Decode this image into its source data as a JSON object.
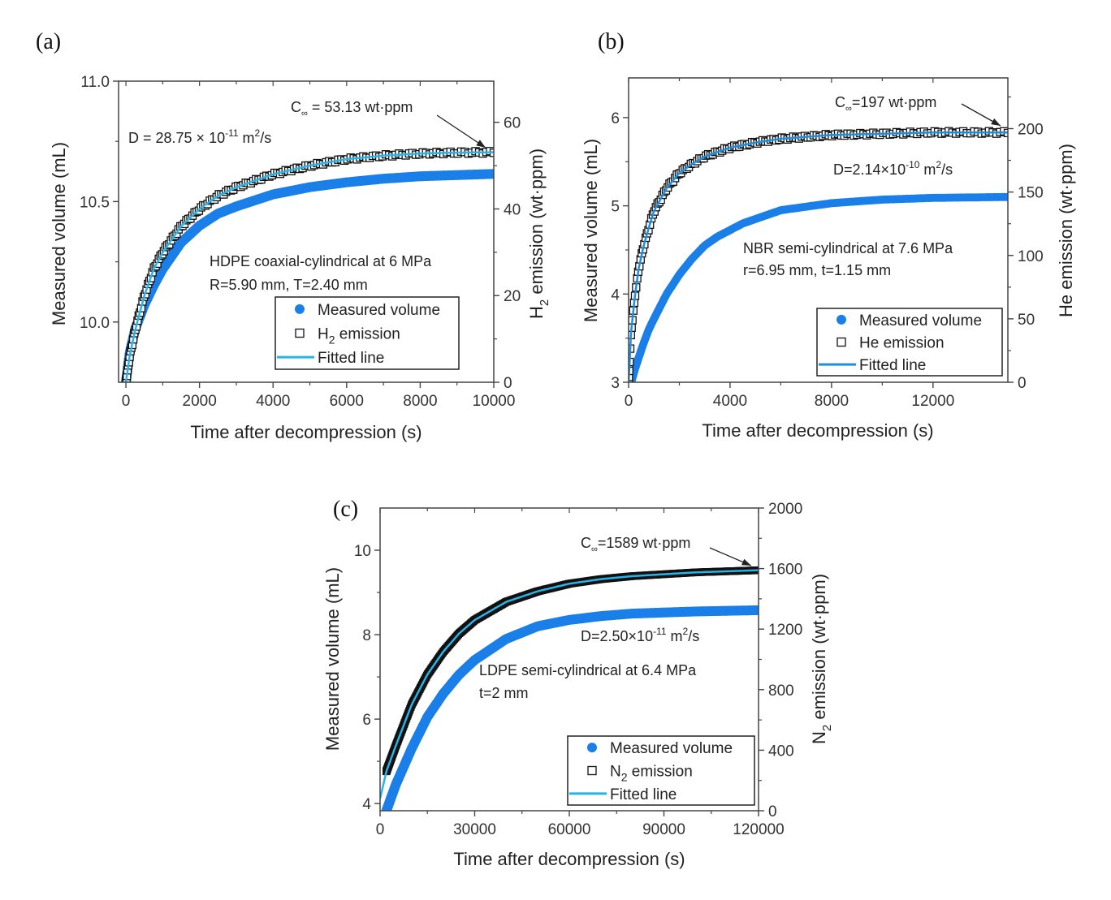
{
  "chart_data": [
    {
      "panel": "(a)",
      "type": "scatter",
      "xlabel": "Time after decompression (s)",
      "ylabel": "Measured volume (mL)",
      "y2label": {
        "main": "H",
        "sub": "2",
        "rest": " emission (wt·ppm)"
      },
      "xlim": [
        -200,
        10000
      ],
      "ylim": [
        9.75,
        11.0
      ],
      "y2lim": [
        0,
        69.5
      ],
      "xticks": [
        0,
        2000,
        4000,
        6000,
        8000,
        10000
      ],
      "xtick_labels": [
        "0",
        "2000",
        "4000",
        "6000",
        "8000",
        "10000"
      ],
      "yticks": [
        10.0,
        10.5,
        11.0
      ],
      "ytick_labels": [
        "10.0",
        "10.5",
        "11.0"
      ],
      "y2ticks": [
        0,
        20,
        40,
        60
      ],
      "y2tick_labels": [
        "0",
        "20",
        "40",
        "60"
      ],
      "annotations": {
        "cinf": {
          "pre": "C",
          "sub": "∞",
          "post": " = 53.13 wt·ppm"
        },
        "diff": {
          "pre": "D = 28.75 × 10",
          "sup": "-11",
          "mid": " m",
          "sup2": "2",
          "post": "/s"
        },
        "material": "HDPE coaxial-cylindrical at 6 MPa",
        "dims": "R=5.90 mm, T=2.40 mm"
      },
      "legend": {
        "position": "lower-right",
        "entries": [
          {
            "label": "Measured volume",
            "marker": "filled-circle"
          },
          {
            "label_main": "H",
            "label_sub": "2",
            "label_rest": " emission",
            "marker": "open-square"
          },
          {
            "label": "Fitted line",
            "marker": "line"
          }
        ]
      },
      "series": [
        {
          "name": "Measured volume",
          "axis": "left",
          "color": "#1a7fe8",
          "x": [
            0,
            100,
            250,
            500,
            750,
            1000,
            1500,
            2000,
            2500,
            3000,
            4000,
            5000,
            6000,
            7000,
            8000,
            9000,
            10000
          ],
          "y": [
            9.75,
            9.87,
            9.97,
            10.07,
            10.15,
            10.22,
            10.33,
            10.4,
            10.45,
            10.48,
            10.53,
            10.56,
            10.58,
            10.595,
            10.605,
            10.61,
            10.615
          ]
        },
        {
          "name": "H2 emission",
          "axis": "right",
          "color": "#111111",
          "x": [
            0,
            100,
            250,
            500,
            750,
            1000,
            1500,
            2000,
            2500,
            3000,
            4000,
            5000,
            6000,
            7000,
            8000,
            9000,
            10000
          ],
          "y": [
            0,
            6,
            12,
            20,
            26,
            30,
            36,
            40,
            43,
            45,
            48,
            50,
            51.5,
            52.3,
            52.8,
            53.0,
            53.1
          ]
        },
        {
          "name": "Fitted line",
          "axis": "right",
          "color": "#27b4e8",
          "x": [
            0,
            100,
            250,
            500,
            750,
            1000,
            1500,
            2000,
            2500,
            3000,
            4000,
            5000,
            6000,
            7000,
            8000,
            9000,
            10000
          ],
          "y": [
            0,
            6,
            12,
            20,
            26,
            30,
            36,
            40,
            43,
            45,
            48,
            50,
            51.5,
            52.3,
            52.8,
            53.0,
            53.1
          ]
        }
      ]
    },
    {
      "panel": "(b)",
      "type": "scatter",
      "xlabel": "Time after decompression (s)",
      "ylabel": "Measured volume (mL)",
      "y2label": {
        "main": "He emission (wt·ppm)",
        "sub": "",
        "rest": ""
      },
      "xlim": [
        0,
        14950
      ],
      "ylim": [
        3.0,
        6.45
      ],
      "y2lim": [
        0,
        240
      ],
      "xticks": [
        0,
        4000,
        8000,
        12000
      ],
      "xtick_labels": [
        "0",
        "4000",
        "8000",
        "12000"
      ],
      "yticks": [
        3,
        4,
        5,
        6
      ],
      "ytick_labels": [
        "3",
        "4",
        "5",
        "6"
      ],
      "y2ticks": [
        0,
        50,
        100,
        150,
        200
      ],
      "y2tick_labels": [
        "0",
        "50",
        "100",
        "150",
        "200"
      ],
      "annotations": {
        "cinf": {
          "pre": "C",
          "sub": "∞",
          "post": "=197 wt·ppm"
        },
        "diff": {
          "pre": "D=2.14×10",
          "sup": "-10",
          "mid": " m",
          "sup2": "2",
          "post": "/s"
        },
        "material": "NBR semi-cylindrical at 7.6 MPa",
        "dims": "r=6.95 mm, t=1.15 mm"
      },
      "legend": {
        "position": "lower-right",
        "entries": [
          {
            "label": "Measured volume",
            "marker": "filled-circle"
          },
          {
            "label_main": "He emission",
            "label_sub": "",
            "label_rest": "",
            "marker": "open-square"
          },
          {
            "label": "Fitted line",
            "marker": "line"
          }
        ]
      },
      "series": [
        {
          "name": "Measured volume",
          "axis": "left",
          "color": "#1a7fe8",
          "x": [
            100,
            250,
            400,
            600,
            800,
            1000,
            1500,
            2000,
            2500,
            3000,
            3500,
            4500,
            6000,
            8000,
            10000,
            12000,
            14950
          ],
          "y": [
            3.0,
            3.15,
            3.28,
            3.45,
            3.6,
            3.72,
            4.0,
            4.22,
            4.4,
            4.55,
            4.65,
            4.8,
            4.95,
            5.03,
            5.07,
            5.09,
            5.1
          ]
        },
        {
          "name": "He emission",
          "axis": "right",
          "color": "#111111",
          "x": [
            0,
            100,
            250,
            400,
            600,
            800,
            1000,
            1500,
            2000,
            2500,
            3000,
            4000,
            5000,
            6000,
            8000,
            10000,
            12000,
            14950
          ],
          "y": [
            0,
            40,
            68,
            90,
            108,
            122,
            135,
            153,
            165,
            172,
            178,
            185,
            189,
            192,
            195,
            196,
            197,
            197
          ]
        },
        {
          "name": "Fitted line",
          "axis": "right",
          "color": "#1e8fe0",
          "x": [
            0,
            100,
            250,
            400,
            600,
            800,
            1000,
            1500,
            2000,
            2500,
            3000,
            4000,
            5000,
            6000,
            8000,
            10000,
            12000,
            14950
          ],
          "y": [
            0,
            40,
            68,
            90,
            108,
            122,
            135,
            153,
            165,
            172,
            178,
            185,
            189,
            192,
            195,
            196,
            197,
            197
          ]
        }
      ]
    },
    {
      "panel": "(c)",
      "type": "scatter",
      "xlabel": "Time after decompression (s)",
      "ylabel": "Measured volume (mL)",
      "y2label": {
        "main": "N",
        "sub": "2",
        "rest": " emission (wt·ppm)"
      },
      "xlim": [
        0,
        120000
      ],
      "ylim": [
        3.83,
        11.0
      ],
      "y2lim": [
        0,
        2000
      ],
      "xticks": [
        0,
        30000,
        60000,
        90000,
        120000
      ],
      "xtick_labels": [
        "0",
        "30000",
        "60000",
        "90000",
        "120000"
      ],
      "yticks": [
        4,
        6,
        8,
        10
      ],
      "ytick_labels": [
        "4",
        "6",
        "8",
        "10"
      ],
      "y2ticks": [
        0,
        400,
        800,
        1200,
        1600,
        2000
      ],
      "y2tick_labels": [
        "0",
        "400",
        "800",
        "1200",
        "1600",
        "2000"
      ],
      "annotations": {
        "cinf": {
          "pre": "C",
          "sub": "∞",
          "post": "=1589 wt·ppm"
        },
        "diff": {
          "pre": "D=2.50×10",
          "sup": "-11",
          "mid": " m",
          "sup2": "2",
          "post": "/s"
        },
        "material": "LDPE semi-cylindrical at 6.4 MPa",
        "dims": "t=2 mm"
      },
      "legend": {
        "position": "lower-right",
        "entries": [
          {
            "label": "Measured volume",
            "marker": "filled-circle"
          },
          {
            "label_main": "N",
            "label_sub": "2",
            "label_rest": " emission",
            "marker": "open-square"
          },
          {
            "label": "Fitted line",
            "marker": "line"
          }
        ]
      },
      "series": [
        {
          "name": "Measured volume",
          "axis": "left",
          "color": "#1a7fe8",
          "x": [
            2000,
            5000,
            10000,
            15000,
            20000,
            25000,
            30000,
            40000,
            50000,
            60000,
            70000,
            80000,
            100000,
            120000
          ],
          "y": [
            3.83,
            4.45,
            5.3,
            6.05,
            6.6,
            7.05,
            7.4,
            7.9,
            8.2,
            8.35,
            8.44,
            8.5,
            8.55,
            8.58
          ]
        },
        {
          "name": "N2 emission",
          "axis": "right",
          "color": "#111111",
          "x": [
            2000,
            5000,
            10000,
            15000,
            20000,
            25000,
            30000,
            40000,
            50000,
            60000,
            70000,
            80000,
            100000,
            120000
          ],
          "y": [
            260,
            430,
            700,
            900,
            1050,
            1170,
            1260,
            1380,
            1450,
            1500,
            1530,
            1550,
            1575,
            1589
          ]
        },
        {
          "name": "Fitted line",
          "axis": "right",
          "color": "#27b4e8",
          "x": [
            0,
            2000,
            5000,
            10000,
            15000,
            20000,
            25000,
            30000,
            40000,
            50000,
            60000,
            70000,
            80000,
            100000,
            120000
          ],
          "y": [
            80,
            260,
            430,
            700,
            900,
            1050,
            1170,
            1260,
            1380,
            1450,
            1500,
            1530,
            1550,
            1575,
            1589
          ]
        }
      ]
    }
  ]
}
